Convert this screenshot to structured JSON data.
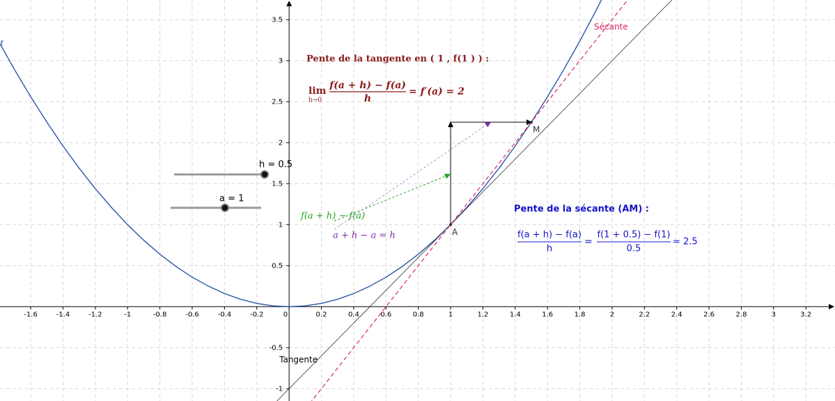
{
  "chart_data": {
    "type": "line",
    "xlim": [
      -1.79,
      3.38
    ],
    "ylim": [
      -1.15,
      3.74
    ],
    "xticks": [
      -1.6,
      -1.4,
      -1.2,
      -1,
      -0.8,
      -0.6,
      -0.4,
      -0.2,
      0,
      0.2,
      0.4,
      0.6,
      0.8,
      1,
      1.2,
      1.4,
      1.6,
      1.8,
      2,
      2.2,
      2.4,
      2.6,
      2.8,
      3,
      3.2
    ],
    "yticks": [
      -1,
      -0.5,
      0,
      0.5,
      1,
      1.5,
      2,
      2.5,
      3,
      3.5
    ],
    "grid": true,
    "series": [
      {
        "name": "f",
        "color": "#2a55a8",
        "x": [
          -1.8,
          -1.7,
          -1.6,
          -1.5,
          -1.4,
          -1.3,
          -1.2,
          -1.1,
          -1,
          -0.9,
          -0.8,
          -0.7,
          -0.6,
          -0.5,
          -0.4,
          -0.3,
          -0.2,
          -0.1,
          0,
          0.1,
          0.2,
          0.3,
          0.4,
          0.5,
          0.6,
          0.7,
          0.8,
          0.9,
          1,
          1.1,
          1.2,
          1.3,
          1.4,
          1.5,
          1.6,
          1.7,
          1.8,
          1.9,
          2
        ],
        "values": [
          3.24,
          2.89,
          2.56,
          2.25,
          1.96,
          1.69,
          1.44,
          1.21,
          1,
          0.81,
          0.64,
          0.49,
          0.36,
          0.25,
          0.16,
          0.09,
          0.04,
          0.01,
          0,
          0.01,
          0.04,
          0.09,
          0.16,
          0.25,
          0.36,
          0.49,
          0.64,
          0.81,
          1,
          1.21,
          1.44,
          1.69,
          1.96,
          2.25,
          2.56,
          2.89,
          3.24,
          3.61,
          4
        ]
      },
      {
        "name": "Tangente",
        "color": "#333333",
        "x": [
          -0.1,
          2.4
        ],
        "values": [
          -1.2,
          3.8
        ]
      },
      {
        "name": "Sécante",
        "color": "#e0245e",
        "x": [
          0.1,
          2.1
        ],
        "values": [
          -1.25,
          3.75
        ]
      }
    ],
    "points": [
      {
        "name": "A",
        "x": 1,
        "y": 1
      },
      {
        "name": "M",
        "x": 1.5,
        "y": 2.25
      }
    ],
    "sliders": [
      "h = 0.5",
      "a = 1"
    ],
    "tangent_title": "Pente de la tangente en ( 1 , f(1 ) ) :",
    "tangent_formula": {
      "lim": "lim",
      "under": "h→0",
      "num": "f(a + h) − f(a)",
      "den": "h",
      "rhs": "= f′(a) = 2"
    },
    "rise_label": "f(a + h) − f(a)",
    "run_label": "a + h − a = h",
    "secant_title": "Pente de la sécante (AM) :",
    "secant_formula": {
      "num1": "f(a + h) − f(a)",
      "den1": "h",
      "eq": "=",
      "num2": "f(1 + 0.5) − f(1)",
      "den2": "0.5",
      "approx": "≈ 2.5"
    }
  }
}
